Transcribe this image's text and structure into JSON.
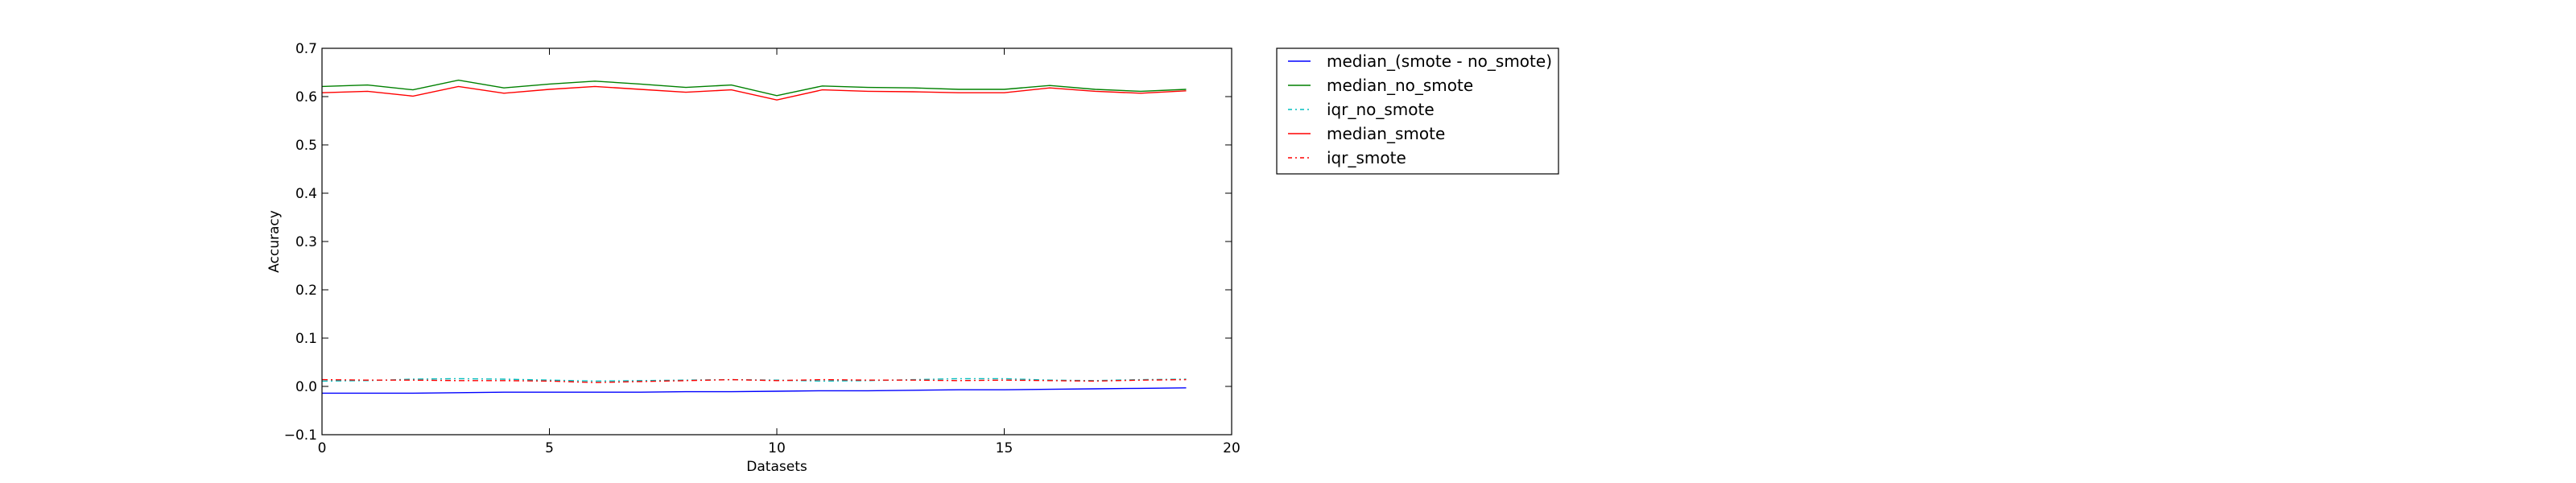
{
  "chart_data": {
    "type": "line",
    "title": "",
    "xlabel": "Datasets",
    "ylabel": "Accuracy",
    "xlim": [
      0,
      20
    ],
    "ylim": [
      -0.1,
      0.7
    ],
    "xticks": [
      0,
      5,
      10,
      15,
      20
    ],
    "xtick_labels": [
      "0",
      "5",
      "10",
      "15",
      "20"
    ],
    "yticks": [
      -0.1,
      0.0,
      0.1,
      0.2,
      0.3,
      0.4,
      0.5,
      0.6,
      0.7
    ],
    "ytick_labels": [
      "−0.1",
      "0.0",
      "0.1",
      "0.2",
      "0.3",
      "0.4",
      "0.5",
      "0.6",
      "0.7"
    ],
    "grid": false,
    "legend_position": "outside-right-top",
    "x": [
      0,
      1,
      2,
      3,
      4,
      5,
      6,
      7,
      8,
      9,
      10,
      11,
      12,
      13,
      14,
      15,
      16,
      17,
      18,
      19
    ],
    "series": [
      {
        "name": "median_(smote - no_smote)",
        "color": "#0000ff",
        "dash": "solid",
        "values": [
          -0.014,
          -0.014,
          -0.014,
          -0.013,
          -0.012,
          -0.012,
          -0.012,
          -0.012,
          -0.011,
          -0.011,
          -0.01,
          -0.009,
          -0.009,
          -0.008,
          -0.007,
          -0.007,
          -0.006,
          -0.005,
          -0.004,
          -0.003
        ]
      },
      {
        "name": "median_no_smote",
        "color": "#008000",
        "dash": "solid",
        "values": [
          0.621,
          0.624,
          0.614,
          0.634,
          0.618,
          0.626,
          0.632,
          0.626,
          0.619,
          0.624,
          0.602,
          0.622,
          0.619,
          0.618,
          0.615,
          0.615,
          0.623,
          0.615,
          0.611,
          0.615
        ]
      },
      {
        "name": "iqr_no_smote",
        "color": "#00bfbf",
        "dash": "dashdot",
        "values": [
          0.011,
          0.012,
          0.015,
          0.016,
          0.015,
          0.013,
          0.011,
          0.012,
          0.013,
          0.014,
          0.013,
          0.011,
          0.012,
          0.014,
          0.016,
          0.016,
          0.013,
          0.012,
          0.014,
          0.015
        ]
      },
      {
        "name": "median_smote",
        "color": "#ff0000",
        "dash": "solid",
        "values": [
          0.608,
          0.611,
          0.601,
          0.621,
          0.607,
          0.615,
          0.621,
          0.615,
          0.609,
          0.614,
          0.593,
          0.614,
          0.611,
          0.61,
          0.608,
          0.608,
          0.618,
          0.611,
          0.607,
          0.612
        ]
      },
      {
        "name": "iqr_smote",
        "color": "#ff0000",
        "dash": "dashdot",
        "values": [
          0.014,
          0.013,
          0.013,
          0.012,
          0.012,
          0.011,
          0.008,
          0.01,
          0.012,
          0.014,
          0.012,
          0.014,
          0.013,
          0.013,
          0.012,
          0.013,
          0.012,
          0.011,
          0.013,
          0.014
        ]
      }
    ]
  }
}
